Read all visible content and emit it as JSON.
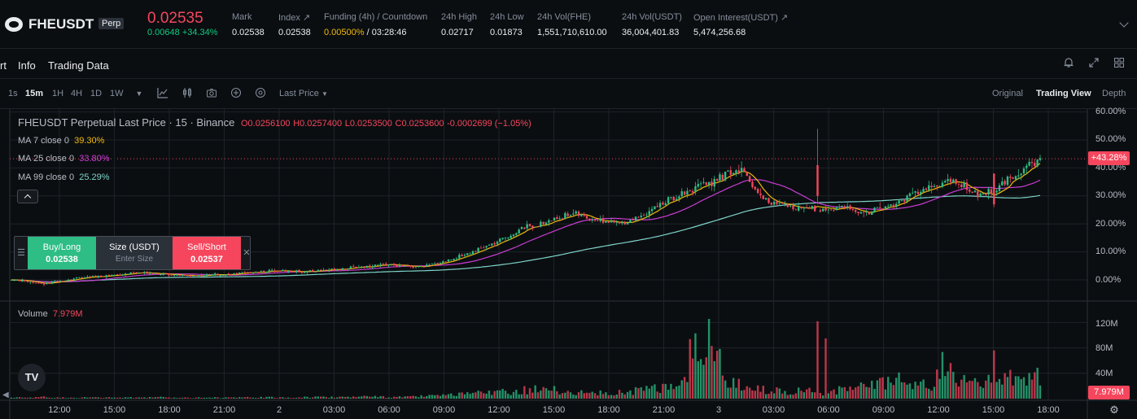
{
  "ticker": {
    "symbol": "FHEUSDT",
    "badge": "Perp",
    "last_price": "0.02535",
    "change": "0.00648 +34.34%",
    "stats": [
      {
        "label": "Mark",
        "value": "0.02538"
      },
      {
        "label": "Index ↗",
        "value": "0.02538"
      },
      {
        "label": "Funding (4h) / Countdown",
        "value_rate": "0.00500%",
        "value_rest": " / 03:28:46"
      },
      {
        "label": "24h High",
        "value": "0.02717"
      },
      {
        "label": "24h Low",
        "value": "0.01873"
      },
      {
        "label": "24h Vol(FHE)",
        "value": "1,551,710,610.00"
      },
      {
        "label": "24h Vol(USDT)",
        "value": "36,004,401.83"
      },
      {
        "label": "Open Interest(USDT) ↗",
        "value": "5,474,256.68"
      }
    ]
  },
  "tabs": {
    "items": [
      "rt",
      "Info",
      "Trading Data"
    ],
    "icons": [
      "bell-icon",
      "expand-icon",
      "grid-icon"
    ]
  },
  "toolbar": {
    "timeframes": [
      "1s",
      "15m",
      "1H",
      "4H",
      "1D",
      "1W"
    ],
    "active_timeframe": "15m",
    "price_type": "Last Price",
    "views": [
      "Original",
      "Trading View",
      "Depth"
    ],
    "active_view": "Trading View"
  },
  "legend": {
    "title": "FHEUSDT Perpetual Last Price · 15 · Binance",
    "o": "O0.0256100",
    "h": "H0.0257400",
    "l": "L0.0253500",
    "c": "C0.0253600",
    "change": "-0.0002699 (−1.05%)",
    "ma7_label": "MA 7 close 0",
    "ma7_value": "39.30%",
    "ma25_label": "MA 25 close 0",
    "ma25_value": "33.80%",
    "ma99_label": "MA 99 close 0",
    "ma99_value": "25.29%",
    "volume_label": "Volume",
    "volume_value": "7.979M"
  },
  "order_widget": {
    "buy_label": "Buy/Long",
    "buy_price": "0.02538",
    "size_label": "Size (USDT)",
    "size_placeholder": "Enter Size",
    "sell_label": "Sell/Short",
    "sell_price": "0.02537"
  },
  "colors": {
    "up": "#2ebd85",
    "down": "#f6465d",
    "ma7": "#f0b90b",
    "ma25": "#c93dd3",
    "ma99": "#7ed3c9"
  },
  "chart_data": {
    "type": "candlestick",
    "price_axis_labels": [
      "60.00%",
      "50.00%",
      "40.00%",
      "30.00%",
      "20.00%",
      "10.00%",
      "0.00%"
    ],
    "price_axis_values": [
      60,
      50,
      40,
      30,
      20,
      10,
      0
    ],
    "current_tag": "+43.28%",
    "current_value": 43.28,
    "volume_axis_labels": [
      "120M",
      "80M",
      "40M"
    ],
    "volume_axis_values": [
      120,
      80,
      40
    ],
    "volume_tag": "7.979M",
    "x_labels": [
      "12:00",
      "15:00",
      "18:00",
      "21:00",
      "2",
      "03:00",
      "06:00",
      "09:00",
      "12:00",
      "15:00",
      "18:00",
      "21:00",
      "3",
      "03:00",
      "06:00",
      "09:00",
      "12:00",
      "15:00",
      "18:00"
    ],
    "close_pct_path": [
      0,
      -0.5,
      -1.5,
      -0.5,
      0.5,
      1,
      1.5,
      2,
      2.5,
      2.5,
      2,
      1.5,
      1.5,
      2,
      2,
      2.5,
      3,
      3.5,
      3,
      3,
      3.5,
      4,
      4.5,
      5,
      5.5,
      5,
      4.5,
      5.5,
      7,
      9,
      11,
      13,
      16,
      19,
      20,
      22,
      24,
      22,
      21,
      20,
      22,
      25,
      28,
      31,
      33,
      35,
      38,
      39,
      30,
      27,
      26,
      26,
      25,
      26,
      25,
      24,
      26,
      28,
      31,
      33,
      35,
      34,
      30,
      32,
      36,
      40,
      43
    ],
    "volume_m_path": [
      2,
      2,
      3,
      2,
      2,
      2,
      2,
      2,
      2,
      3,
      2,
      2,
      2,
      2,
      2,
      2,
      3,
      2,
      2,
      3,
      3,
      3,
      4,
      4,
      3,
      3,
      4,
      5,
      6,
      8,
      10,
      12,
      14,
      16,
      18,
      15,
      12,
      10,
      10,
      12,
      14,
      18,
      22,
      30,
      120,
      95,
      35,
      20,
      18,
      16,
      14,
      14,
      12,
      15,
      18,
      22,
      28,
      32,
      25,
      22,
      75,
      30,
      25,
      32,
      35,
      40,
      50
    ]
  }
}
